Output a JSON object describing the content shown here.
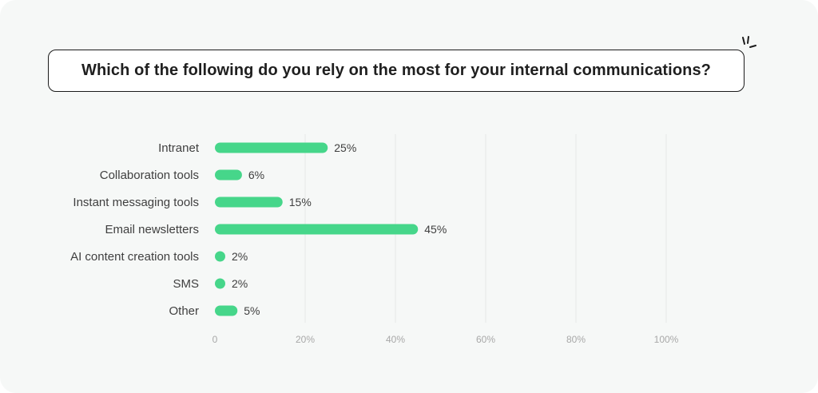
{
  "question": "Which of the following do you rely on the most for your internal communications?",
  "chart_data": {
    "type": "bar",
    "orientation": "horizontal",
    "categories": [
      "Intranet",
      "Collaboration tools",
      "Instant messaging tools",
      "Email newsletters",
      "AI content creation tools",
      "SMS",
      "Other"
    ],
    "values": [
      25,
      6,
      15,
      45,
      2,
      2,
      5
    ],
    "value_labels": [
      "25%",
      "6%",
      "15%",
      "45%",
      "2%",
      "2%",
      "5%"
    ],
    "x_ticks": [
      "0",
      "20%",
      "40%",
      "60%",
      "80%",
      "100%"
    ],
    "x_tick_values": [
      0,
      20,
      40,
      60,
      80,
      100
    ],
    "xlim": [
      0,
      100
    ],
    "grid": "vertical",
    "bar_color": "#46d68a",
    "grid_color": "#e6e8e7"
  }
}
